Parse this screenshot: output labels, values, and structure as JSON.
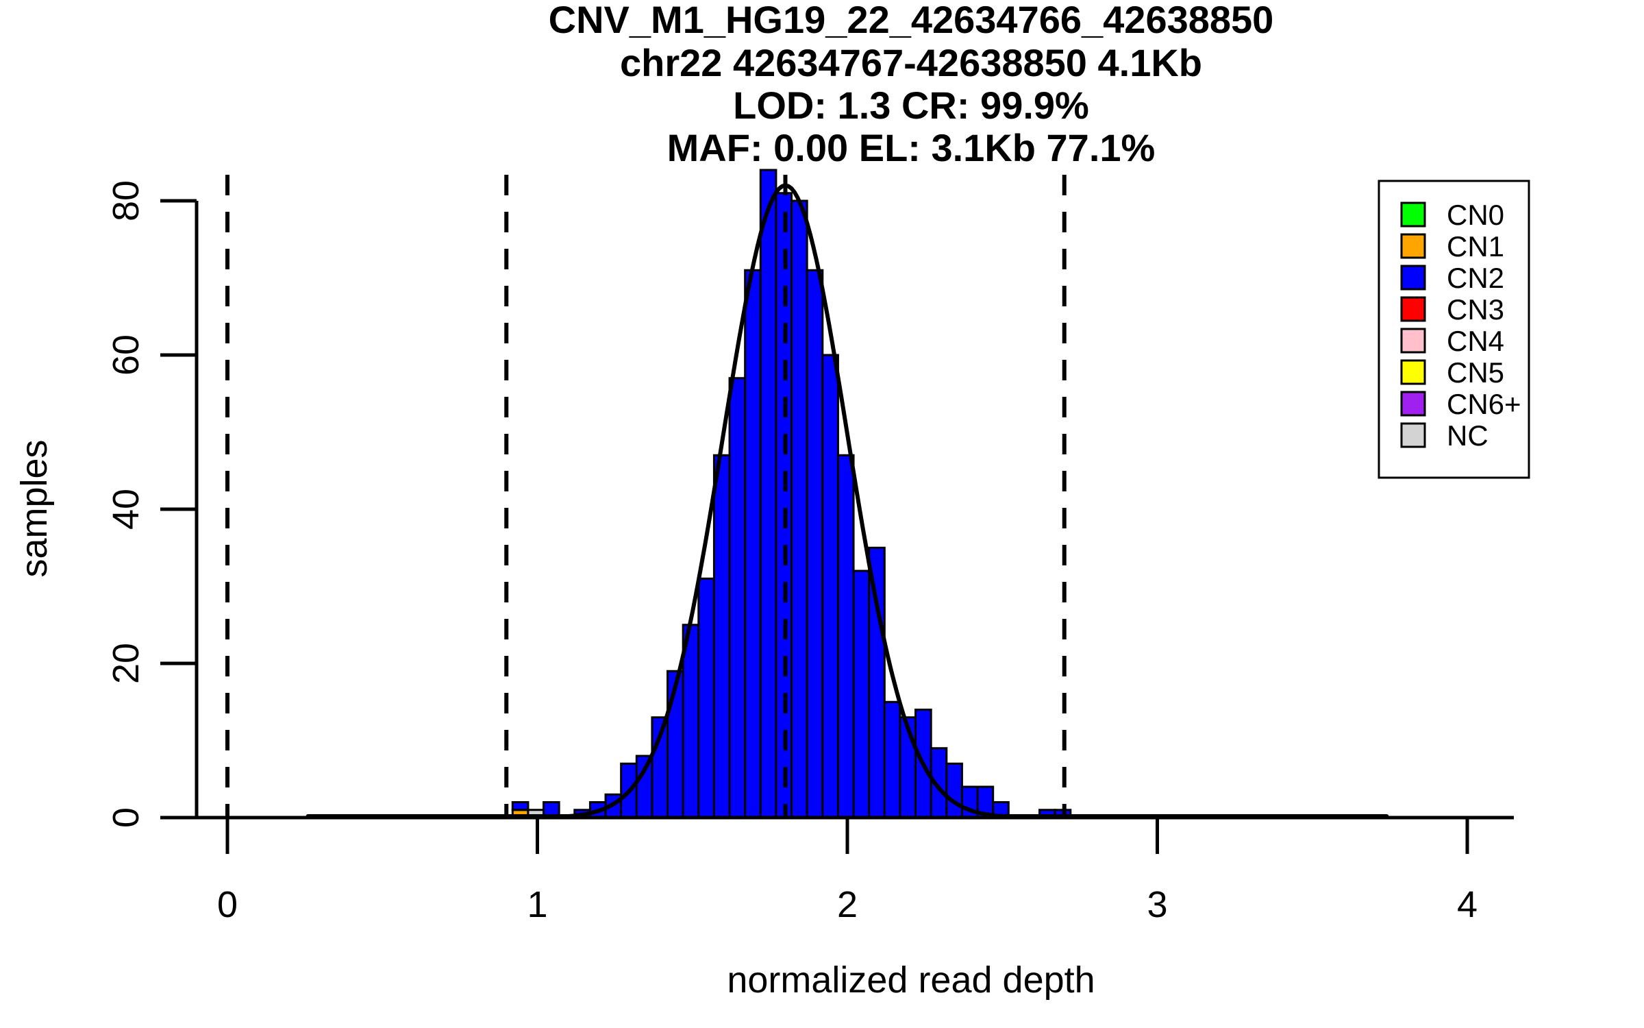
{
  "title_lines": [
    "CNV_M1_HG19_22_42634766_42638850",
    "chr22 42634767-42638850 4.1Kb",
    "LOD: 1.3 CR: 99.9%",
    "MAF: 0.00 EL: 3.1Kb 77.1%"
  ],
  "stats": {
    "region": "chr22 42634767-42638850",
    "region_size": "4.1Kb",
    "lod": "1.3",
    "call_rate": "99.9%",
    "maf": "0.00",
    "el": "3.1Kb",
    "el_pct": "77.1%"
  },
  "axes": {
    "xlabel": "normalized read depth",
    "ylabel": "samples",
    "x_ticks": [
      "0",
      "1",
      "2",
      "3",
      "4"
    ],
    "y_ticks": [
      "0",
      "20",
      "40",
      "60",
      "80"
    ]
  },
  "legend": {
    "position": "top-right",
    "entries": [
      {
        "label": "CN0",
        "color": "#00FF00"
      },
      {
        "label": "CN1",
        "color": "#FFA500"
      },
      {
        "label": "CN2",
        "color": "#0000FF"
      },
      {
        "label": "CN3",
        "color": "#FF0000"
      },
      {
        "label": "CN4",
        "color": "#FFC0CB"
      },
      {
        "label": "CN5",
        "color": "#FFFF00"
      },
      {
        "label": "CN6+",
        "color": "#A020F0"
      },
      {
        "label": "NC",
        "color": "#D3D3D3"
      }
    ]
  },
  "chart_data": {
    "type": "bar",
    "subtype": "stacked-histogram",
    "title": "CNV_M1_HG19_22_42634766_42638850",
    "xlabel": "normalized read depth",
    "ylabel": "samples",
    "xlim": [
      -0.2,
      4.15
    ],
    "ylim": [
      0,
      84
    ],
    "grid": false,
    "legend_position": "top-right",
    "bin_width": 0.05,
    "bars": [
      {
        "x0": 0.92,
        "segments": [
          {
            "cn": "CN1",
            "n": 1
          },
          {
            "cn": "CN2",
            "n": 1
          }
        ]
      },
      {
        "x0": 0.97,
        "segments": [
          {
            "cn": "NC",
            "n": 1
          }
        ]
      },
      {
        "x0": 1.02,
        "segments": [
          {
            "cn": "CN2",
            "n": 2
          }
        ]
      },
      {
        "x0": 1.12,
        "segments": [
          {
            "cn": "CN2",
            "n": 1
          }
        ]
      },
      {
        "x0": 1.17,
        "segments": [
          {
            "cn": "CN2",
            "n": 2
          }
        ]
      },
      {
        "x0": 1.22,
        "segments": [
          {
            "cn": "CN2",
            "n": 3
          }
        ]
      },
      {
        "x0": 1.27,
        "segments": [
          {
            "cn": "CN2",
            "n": 7
          }
        ]
      },
      {
        "x0": 1.32,
        "segments": [
          {
            "cn": "CN2",
            "n": 8
          }
        ]
      },
      {
        "x0": 1.37,
        "segments": [
          {
            "cn": "CN2",
            "n": 13
          }
        ]
      },
      {
        "x0": 1.42,
        "segments": [
          {
            "cn": "CN2",
            "n": 19
          }
        ]
      },
      {
        "x0": 1.47,
        "segments": [
          {
            "cn": "CN2",
            "n": 25
          }
        ]
      },
      {
        "x0": 1.52,
        "segments": [
          {
            "cn": "CN2",
            "n": 31
          }
        ]
      },
      {
        "x0": 1.57,
        "segments": [
          {
            "cn": "CN2",
            "n": 47
          }
        ]
      },
      {
        "x0": 1.62,
        "segments": [
          {
            "cn": "CN2",
            "n": 57
          }
        ]
      },
      {
        "x0": 1.67,
        "segments": [
          {
            "cn": "CN2",
            "n": 71
          }
        ]
      },
      {
        "x0": 1.72,
        "segments": [
          {
            "cn": "CN2",
            "n": 84
          }
        ]
      },
      {
        "x0": 1.77,
        "segments": [
          {
            "cn": "CN2",
            "n": 81
          }
        ]
      },
      {
        "x0": 1.82,
        "segments": [
          {
            "cn": "CN2",
            "n": 80
          }
        ]
      },
      {
        "x0": 1.87,
        "segments": [
          {
            "cn": "CN2",
            "n": 71
          }
        ]
      },
      {
        "x0": 1.92,
        "segments": [
          {
            "cn": "CN2",
            "n": 60
          }
        ]
      },
      {
        "x0": 1.97,
        "segments": [
          {
            "cn": "CN2",
            "n": 47
          }
        ]
      },
      {
        "x0": 2.02,
        "segments": [
          {
            "cn": "CN2",
            "n": 32
          }
        ]
      },
      {
        "x0": 2.07,
        "segments": [
          {
            "cn": "CN2",
            "n": 35
          }
        ]
      },
      {
        "x0": 2.12,
        "segments": [
          {
            "cn": "CN2",
            "n": 15
          }
        ]
      },
      {
        "x0": 2.17,
        "segments": [
          {
            "cn": "CN2",
            "n": 13
          }
        ]
      },
      {
        "x0": 2.22,
        "segments": [
          {
            "cn": "CN2",
            "n": 14
          }
        ]
      },
      {
        "x0": 2.27,
        "segments": [
          {
            "cn": "CN2",
            "n": 9
          }
        ]
      },
      {
        "x0": 2.32,
        "segments": [
          {
            "cn": "CN2",
            "n": 7
          }
        ]
      },
      {
        "x0": 2.37,
        "segments": [
          {
            "cn": "CN2",
            "n": 4
          }
        ]
      },
      {
        "x0": 2.42,
        "segments": [
          {
            "cn": "CN2",
            "n": 4
          }
        ]
      },
      {
        "x0": 2.47,
        "segments": [
          {
            "cn": "CN2",
            "n": 2
          }
        ]
      },
      {
        "x0": 2.62,
        "segments": [
          {
            "cn": "CN2",
            "n": 1
          }
        ]
      },
      {
        "x0": 2.67,
        "segments": [
          {
            "cn": "CN2",
            "n": 1
          }
        ]
      }
    ],
    "dashed_vlines_x": [
      0,
      0.9,
      1.8,
      2.7
    ],
    "fit_curve": {
      "shape": "gaussian",
      "mean": 1.8,
      "sd": 0.2,
      "peak": 82,
      "x_range": [
        0.26,
        3.74
      ]
    }
  }
}
